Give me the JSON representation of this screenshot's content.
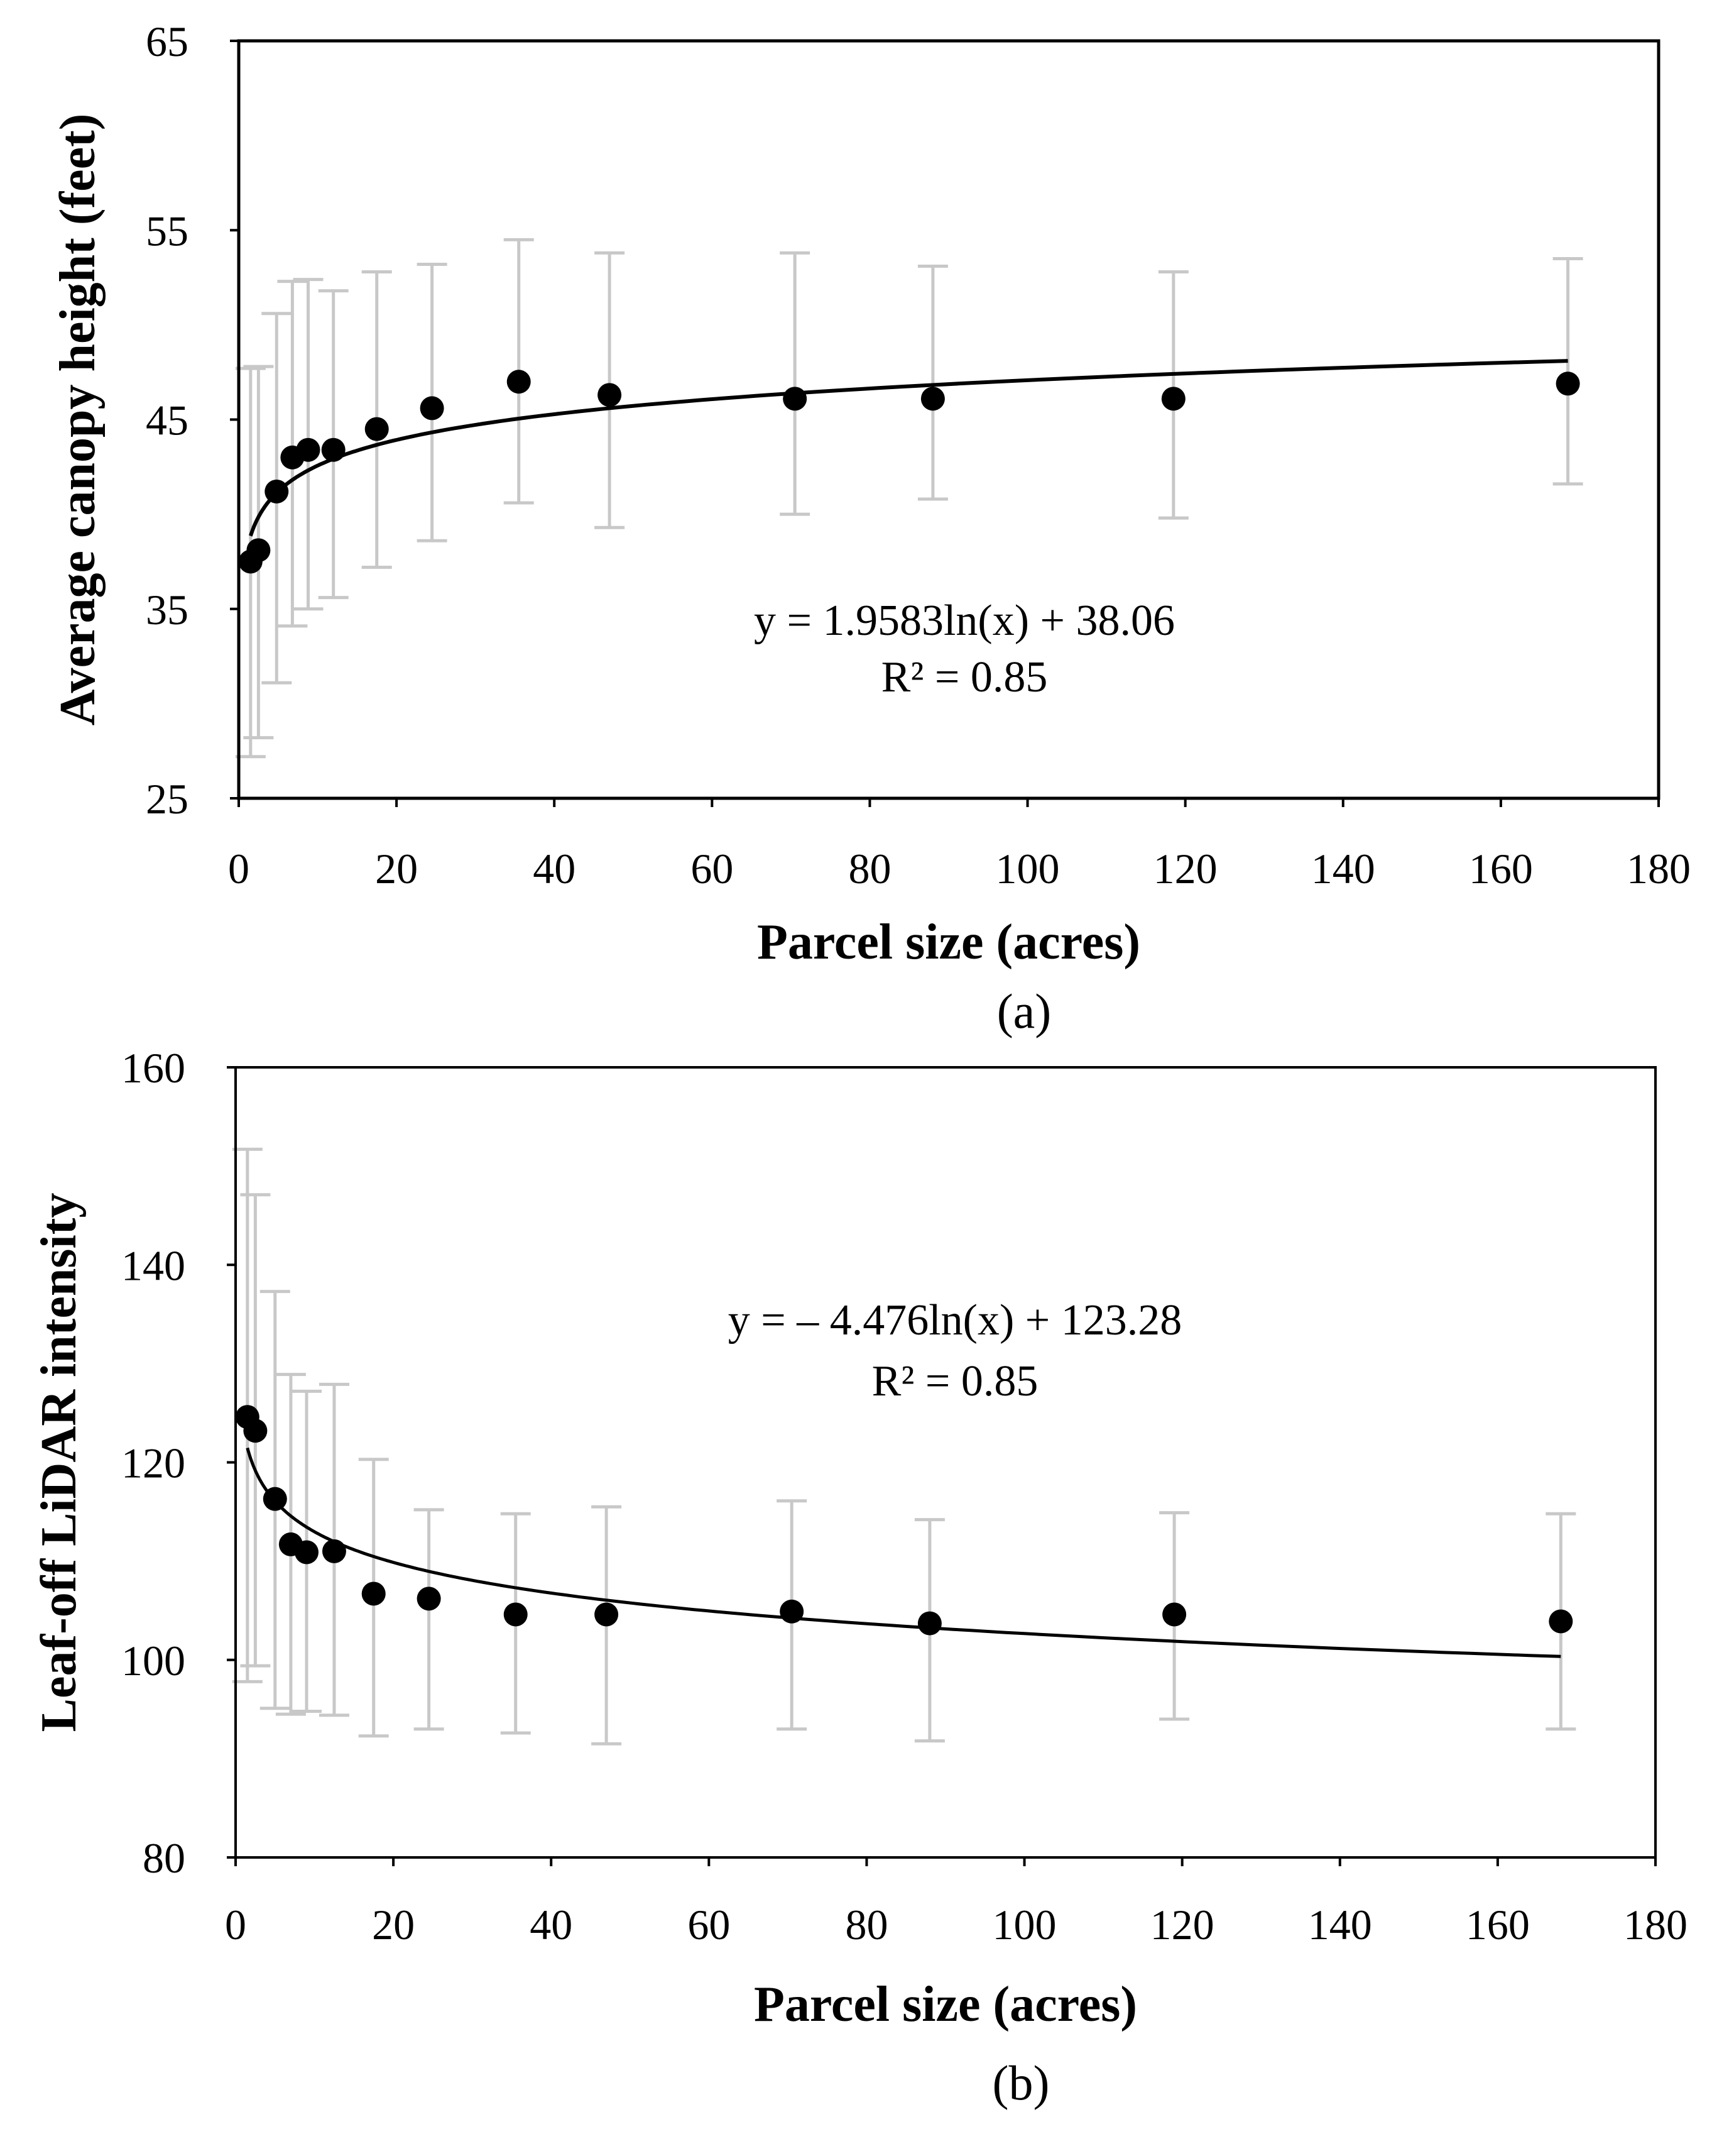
{
  "chart_data": [
    {
      "type": "scatter",
      "panel_label": "(a)",
      "xlabel": "Parcel size (acres)",
      "ylabel": "Average canopy height (feet)",
      "xlim": [
        0,
        180
      ],
      "ylim": [
        25,
        65
      ],
      "xticks": [
        0,
        20,
        40,
        60,
        80,
        100,
        120,
        140,
        160,
        180
      ],
      "yticks": [
        25,
        35,
        45,
        55,
        65
      ],
      "grid": false,
      "points": [
        {
          "x": 1.5,
          "y": 37.5,
          "err_low": 27.2,
          "err_high": 47.7
        },
        {
          "x": 2.5,
          "y": 38.1,
          "err_low": 28.2,
          "err_high": 47.8
        },
        {
          "x": 4.8,
          "y": 41.2,
          "err_low": 31.1,
          "err_high": 50.6
        },
        {
          "x": 6.8,
          "y": 43.0,
          "err_low": 34.1,
          "err_high": 52.3
        },
        {
          "x": 8.8,
          "y": 43.4,
          "err_low": 35.0,
          "err_high": 52.4
        },
        {
          "x": 12.0,
          "y": 43.4,
          "err_low": 35.6,
          "err_high": 51.8
        },
        {
          "x": 17.5,
          "y": 44.5,
          "err_low": 37.2,
          "err_high": 52.8
        },
        {
          "x": 24.5,
          "y": 45.6,
          "err_low": 38.6,
          "err_high": 53.2
        },
        {
          "x": 35.5,
          "y": 47.0,
          "err_low": 40.6,
          "err_high": 54.5
        },
        {
          "x": 47.0,
          "y": 46.3,
          "err_low": 39.3,
          "err_high": 53.8
        },
        {
          "x": 70.5,
          "y": 46.1,
          "err_low": 40.0,
          "err_high": 53.8
        },
        {
          "x": 88.0,
          "y": 46.1,
          "err_low": 40.8,
          "err_high": 53.1
        },
        {
          "x": 118.5,
          "y": 46.1,
          "err_low": 39.8,
          "err_high": 52.8
        },
        {
          "x": 168.5,
          "y": 46.9,
          "err_low": 41.6,
          "err_high": 53.5
        }
      ],
      "trendline": {
        "a": 1.9583,
        "b": 38.06,
        "x_from": 1.5,
        "x_to": 168.5
      },
      "annotation": [
        "y = 1.9583ln(x) + 38.06",
        "R² = 0.85"
      ]
    },
    {
      "type": "scatter",
      "panel_label": "(b)",
      "xlabel": "Parcel size (acres)",
      "ylabel": "Leaf-off LiDAR intensity",
      "xlim": [
        0,
        180
      ],
      "ylim": [
        80,
        160
      ],
      "xticks": [
        0,
        20,
        40,
        60,
        80,
        100,
        120,
        140,
        160,
        180
      ],
      "yticks": [
        80,
        100,
        120,
        140,
        160
      ],
      "grid": false,
      "points": [
        {
          "x": 1.5,
          "y": 124.6,
          "err_low": 97.8,
          "err_high": 151.7
        },
        {
          "x": 2.5,
          "y": 123.2,
          "err_low": 99.4,
          "err_high": 147.1
        },
        {
          "x": 5.0,
          "y": 116.3,
          "err_low": 95.1,
          "err_high": 137.3
        },
        {
          "x": 7.0,
          "y": 111.7,
          "err_low": 94.5,
          "err_high": 128.9
        },
        {
          "x": 9.0,
          "y": 110.9,
          "err_low": 94.8,
          "err_high": 127.2
        },
        {
          "x": 12.5,
          "y": 111.0,
          "err_low": 94.4,
          "err_high": 127.9
        },
        {
          "x": 17.5,
          "y": 106.7,
          "err_low": 92.3,
          "err_high": 120.3
        },
        {
          "x": 24.5,
          "y": 106.2,
          "err_low": 93.0,
          "err_high": 115.2
        },
        {
          "x": 35.5,
          "y": 104.6,
          "err_low": 92.6,
          "err_high": 114.8
        },
        {
          "x": 47.0,
          "y": 104.6,
          "err_low": 91.5,
          "err_high": 115.5
        },
        {
          "x": 70.5,
          "y": 104.9,
          "err_low": 93.0,
          "err_high": 116.1
        },
        {
          "x": 88.0,
          "y": 103.7,
          "err_low": 91.8,
          "err_high": 114.2
        },
        {
          "x": 119.0,
          "y": 104.6,
          "err_low": 94.0,
          "err_high": 114.9
        },
        {
          "x": 168.0,
          "y": 103.9,
          "err_low": 93.0,
          "err_high": 114.8
        }
      ],
      "trendline": {
        "a": -4.476,
        "b": 123.28,
        "x_from": 1.5,
        "x_to": 168.0
      },
      "annotation": [
        "y = – 4.476ln(x) + 123.28",
        "R² = 0.85"
      ]
    }
  ]
}
